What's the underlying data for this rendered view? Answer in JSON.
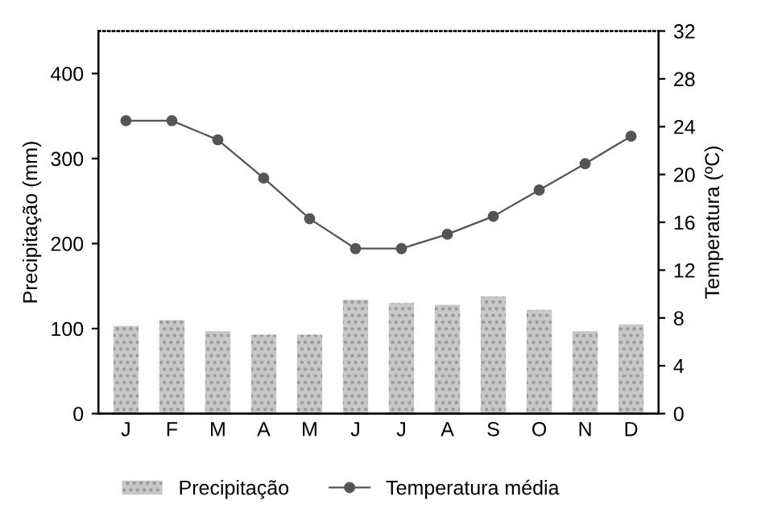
{
  "chart_data": {
    "type": "bar",
    "ylabel": "Precipitação (mm)",
    "y2label": "Temperatura (ºC)",
    "categories": [
      "J",
      "F",
      "M",
      "A",
      "M",
      "J",
      "J",
      "A",
      "S",
      "O",
      "N",
      "D"
    ],
    "series": [
      {
        "name": "Precipitação",
        "color": "#c8c8c8",
        "values": [
          103,
          110,
          97,
          93,
          93,
          134,
          130,
          128,
          138,
          122,
          97,
          105
        ]
      },
      {
        "name": "Temperatura média",
        "type": "line",
        "axis": "y2",
        "color": "#555555",
        "marker": "circle",
        "values": [
          24.5,
          24.5,
          22.9,
          19.7,
          16.3,
          13.8,
          13.8,
          15.0,
          16.5,
          18.7,
          20.9,
          23.2
        ]
      }
    ],
    "ylim": [
      0,
      450
    ],
    "yticks": [
      0,
      100,
      200,
      300,
      400
    ],
    "y2lim": [
      0,
      32
    ],
    "y2ticks": [
      0,
      4,
      8,
      12,
      16,
      20,
      24,
      28,
      32
    ],
    "legend": "bottom",
    "grid": false
  }
}
